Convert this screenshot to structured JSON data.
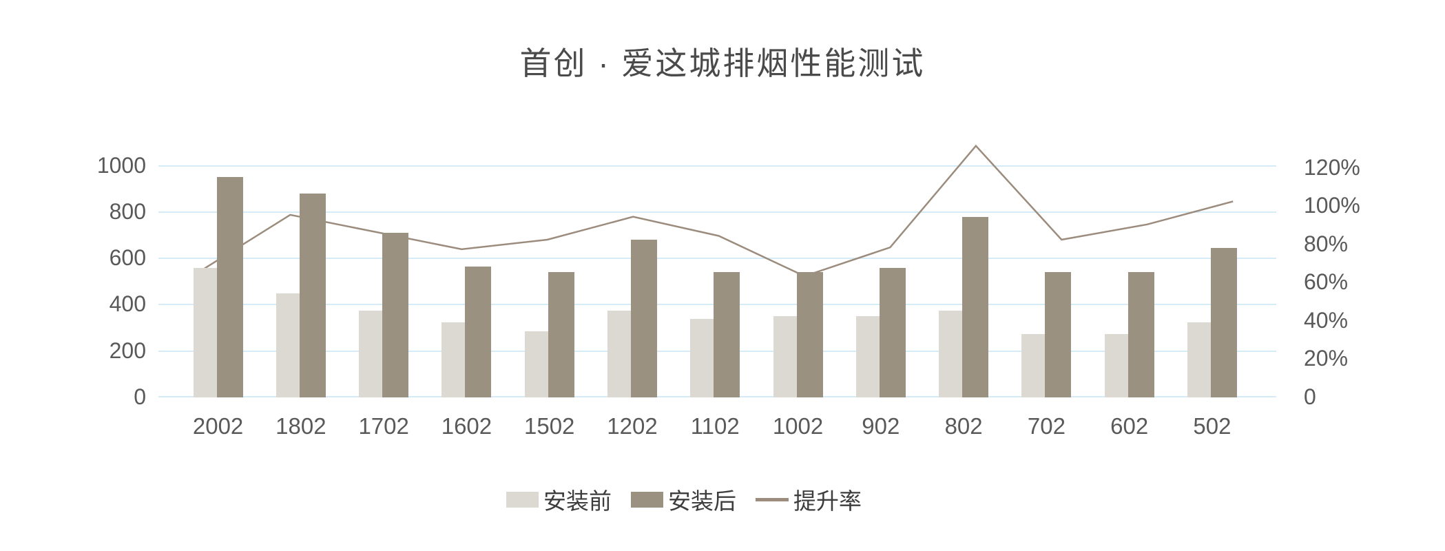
{
  "title": "首创 · 爱这城排烟性能测试",
  "chart_data": {
    "type": "bar+line",
    "title": "首创 · 爱这城排烟性能测试",
    "categories": [
      "2002",
      "1802",
      "1702",
      "1602",
      "1502",
      "1202",
      "1102",
      "1002",
      "902",
      "802",
      "702",
      "602",
      "502"
    ],
    "series": [
      {
        "name": "安装前",
        "type": "bar",
        "axis": "left",
        "color": "#dcd8d2",
        "values": [
          560,
          450,
          375,
          325,
          285,
          375,
          340,
          350,
          350,
          375,
          275,
          275,
          325
        ]
      },
      {
        "name": "安装后",
        "type": "bar",
        "axis": "left",
        "color": "#9b9181",
        "values": [
          950,
          880,
          710,
          565,
          540,
          680,
          540,
          540,
          560,
          780,
          540,
          540,
          645
        ]
      },
      {
        "name": "提升率",
        "type": "line",
        "axis": "right",
        "color": "#9b8c7d",
        "unit": "%",
        "values": [
          67,
          95,
          86,
          77,
          82,
          94,
          84,
          63,
          78,
          131,
          82,
          90,
          102
        ]
      }
    ],
    "left_axis": {
      "tick_labels": [
        "0",
        "200",
        "400",
        "600",
        "800",
        "1000"
      ],
      "tick_values": [
        0,
        200,
        400,
        600,
        800,
        1000
      ],
      "min": 0,
      "max": 1000
    },
    "right_axis": {
      "tick_labels": [
        "0",
        "20%",
        "40%",
        "60%",
        "80%",
        "100%",
        "120%"
      ],
      "min": 0,
      "max_label_pct": 120
    },
    "legend": {
      "position": "bottom",
      "entries": [
        "安装前",
        "安装后",
        "提升率"
      ]
    },
    "grid": {
      "show": true,
      "color": "#d5ebf7"
    }
  }
}
